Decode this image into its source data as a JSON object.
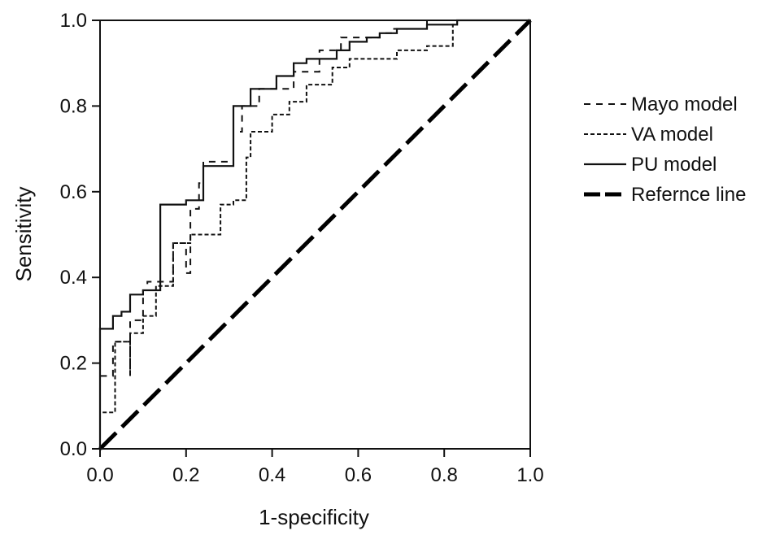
{
  "chart_data": {
    "type": "line",
    "title": "",
    "xlabel": "1-specificity",
    "ylabel": "Sensitivity",
    "xlim": [
      0,
      1
    ],
    "ylim": [
      0,
      1
    ],
    "x_ticks": [
      "0.0",
      "0.2",
      "0.4",
      "0.6",
      "0.8",
      "1.0"
    ],
    "y_ticks": [
      "0.0",
      "0.2",
      "0.4",
      "0.6",
      "0.8",
      "1.0"
    ],
    "grid": false,
    "legend_position": "right",
    "series": [
      {
        "name": "Mayo model",
        "style": "dashed",
        "color": "#111111",
        "points": [
          [
            0,
            0
          ],
          [
            0,
            0.17
          ],
          [
            0.03,
            0.17
          ],
          [
            0.03,
            0.25
          ],
          [
            0.07,
            0.25
          ],
          [
            0.07,
            0.17
          ],
          [
            0.07,
            0.3
          ],
          [
            0.1,
            0.3
          ],
          [
            0.1,
            0.37
          ],
          [
            0.11,
            0.37
          ],
          [
            0.11,
            0.39
          ],
          [
            0.17,
            0.39
          ],
          [
            0.17,
            0.48
          ],
          [
            0.2,
            0.48
          ],
          [
            0.2,
            0.41
          ],
          [
            0.21,
            0.41
          ],
          [
            0.21,
            0.56
          ],
          [
            0.23,
            0.56
          ],
          [
            0.23,
            0.62
          ],
          [
            0.24,
            0.62
          ],
          [
            0.24,
            0.67
          ],
          [
            0.31,
            0.67
          ],
          [
            0.31,
            0.74
          ],
          [
            0.33,
            0.74
          ],
          [
            0.33,
            0.8
          ],
          [
            0.37,
            0.8
          ],
          [
            0.37,
            0.84
          ],
          [
            0.45,
            0.84
          ],
          [
            0.45,
            0.88
          ],
          [
            0.51,
            0.88
          ],
          [
            0.51,
            0.93
          ],
          [
            0.56,
            0.93
          ],
          [
            0.56,
            0.96
          ],
          [
            0.65,
            0.96
          ],
          [
            0.65,
            0.97
          ],
          [
            0.68,
            0.97
          ],
          [
            0.68,
            0.98
          ],
          [
            0.76,
            0.98
          ],
          [
            0.76,
            1.0
          ],
          [
            1.0,
            1.0
          ]
        ]
      },
      {
        "name": "VA model",
        "style": "dotted",
        "color": "#111111",
        "points": [
          [
            0,
            0
          ],
          [
            0,
            0.085
          ],
          [
            0.035,
            0.085
          ],
          [
            0.035,
            0.25
          ],
          [
            0.07,
            0.25
          ],
          [
            0.07,
            0.27
          ],
          [
            0.1,
            0.27
          ],
          [
            0.1,
            0.31
          ],
          [
            0.13,
            0.31
          ],
          [
            0.13,
            0.38
          ],
          [
            0.17,
            0.38
          ],
          [
            0.17,
            0.48
          ],
          [
            0.21,
            0.48
          ],
          [
            0.21,
            0.5
          ],
          [
            0.28,
            0.5
          ],
          [
            0.28,
            0.57
          ],
          [
            0.31,
            0.57
          ],
          [
            0.31,
            0.58
          ],
          [
            0.34,
            0.58
          ],
          [
            0.34,
            0.68
          ],
          [
            0.35,
            0.68
          ],
          [
            0.35,
            0.74
          ],
          [
            0.4,
            0.74
          ],
          [
            0.4,
            0.78
          ],
          [
            0.44,
            0.78
          ],
          [
            0.44,
            0.81
          ],
          [
            0.48,
            0.81
          ],
          [
            0.48,
            0.85
          ],
          [
            0.54,
            0.85
          ],
          [
            0.54,
            0.89
          ],
          [
            0.58,
            0.89
          ],
          [
            0.58,
            0.91
          ],
          [
            0.69,
            0.91
          ],
          [
            0.69,
            0.93
          ],
          [
            0.76,
            0.93
          ],
          [
            0.76,
            0.94
          ],
          [
            0.82,
            0.94
          ],
          [
            0.82,
            0.99
          ],
          [
            0.83,
            0.99
          ],
          [
            0.83,
            1.0
          ],
          [
            1.0,
            1.0
          ]
        ]
      },
      {
        "name": "PU model",
        "style": "solid",
        "color": "#111111",
        "points": [
          [
            0,
            0
          ],
          [
            0,
            0.28
          ],
          [
            0.03,
            0.28
          ],
          [
            0.03,
            0.31
          ],
          [
            0.05,
            0.31
          ],
          [
            0.05,
            0.32
          ],
          [
            0.07,
            0.32
          ],
          [
            0.07,
            0.36
          ],
          [
            0.1,
            0.36
          ],
          [
            0.1,
            0.37
          ],
          [
            0.14,
            0.37
          ],
          [
            0.14,
            0.57
          ],
          [
            0.2,
            0.57
          ],
          [
            0.2,
            0.58
          ],
          [
            0.24,
            0.58
          ],
          [
            0.24,
            0.66
          ],
          [
            0.31,
            0.66
          ],
          [
            0.31,
            0.8
          ],
          [
            0.35,
            0.8
          ],
          [
            0.35,
            0.84
          ],
          [
            0.41,
            0.84
          ],
          [
            0.41,
            0.87
          ],
          [
            0.45,
            0.87
          ],
          [
            0.45,
            0.9
          ],
          [
            0.48,
            0.9
          ],
          [
            0.48,
            0.91
          ],
          [
            0.55,
            0.91
          ],
          [
            0.55,
            0.93
          ],
          [
            0.58,
            0.93
          ],
          [
            0.58,
            0.95
          ],
          [
            0.62,
            0.95
          ],
          [
            0.62,
            0.96
          ],
          [
            0.65,
            0.96
          ],
          [
            0.65,
            0.97
          ],
          [
            0.69,
            0.97
          ],
          [
            0.69,
            0.98
          ],
          [
            0.76,
            0.98
          ],
          [
            0.76,
            0.99
          ],
          [
            0.83,
            0.99
          ],
          [
            0.83,
            1.0
          ],
          [
            1.0,
            1.0
          ]
        ]
      },
      {
        "name": "Refernce line",
        "style": "long-dash",
        "color": "#000000",
        "points": [
          [
            0,
            0
          ],
          [
            1,
            1
          ]
        ]
      }
    ]
  }
}
